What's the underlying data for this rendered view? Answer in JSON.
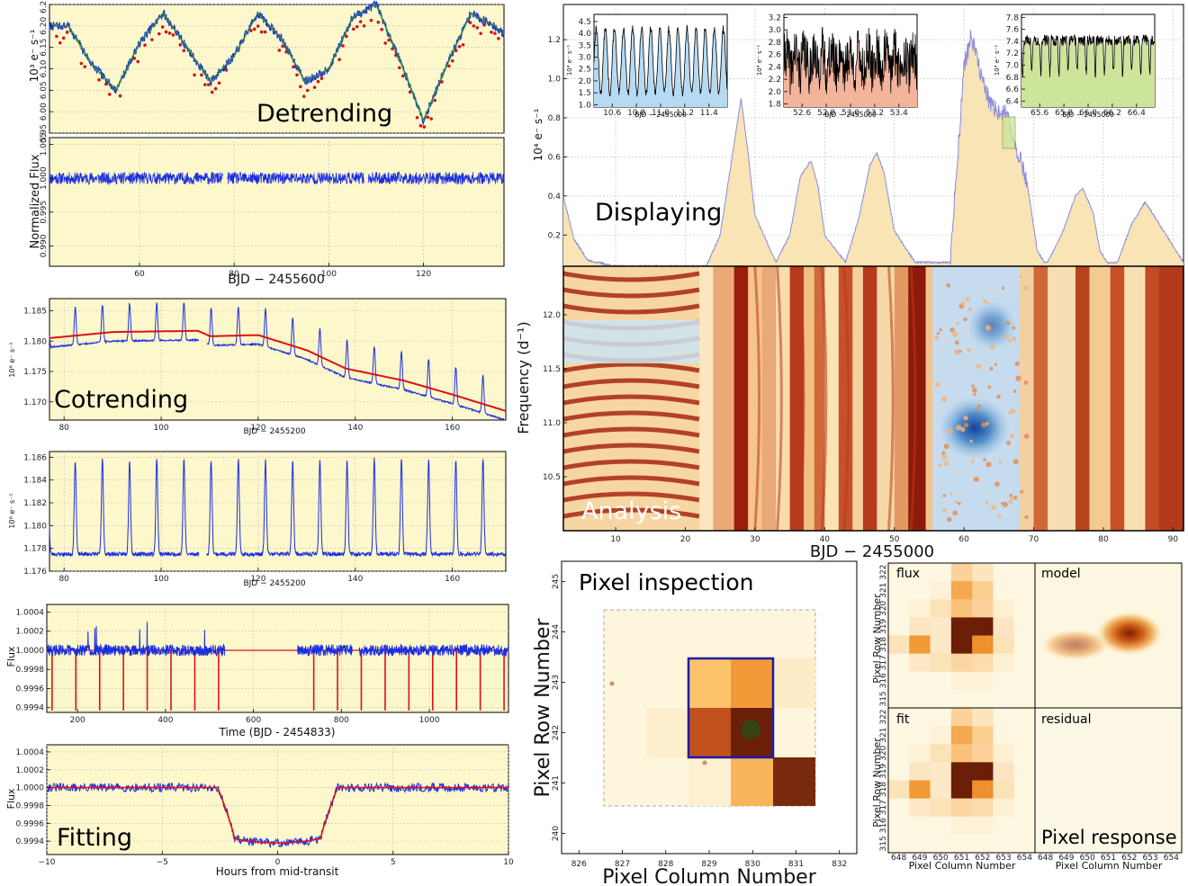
{
  "colors": {
    "fill": "#fdf7cc",
    "fill_pk": "#f8e4b4",
    "line": "#1a2ee0",
    "model": "#dd1111",
    "point": "#cc1818",
    "heat_hi": "#a32010",
    "heat_lo": "#1e4fa6"
  },
  "chart_data": [
    {
      "id": "detrending-raw",
      "type": "line",
      "ylabel": "10³ e⁻ s⁻¹",
      "yticks": [
        "5.95",
        "6.00",
        "6.05",
        "6.10",
        "6.15",
        "6.20",
        "6.25"
      ],
      "ylim": [
        5.95,
        6.25
      ],
      "xlim": [
        41,
        137
      ],
      "overlay": "Detrending",
      "series": [
        {
          "x": [
            41,
            45,
            50,
            55,
            60,
            65,
            70,
            75,
            80,
            85,
            90,
            95,
            100,
            105,
            110,
            115,
            120,
            125,
            130,
            135,
            137
          ],
          "values": [
            6.2,
            6.2,
            6.11,
            6.05,
            6.16,
            6.23,
            6.15,
            6.07,
            6.13,
            6.23,
            6.17,
            6.07,
            6.1,
            6.22,
            6.25,
            6.12,
            5.98,
            6.11,
            6.23,
            6.2,
            6.18
          ]
        }
      ]
    },
    {
      "id": "detrending-normalized",
      "type": "line",
      "ylabel": "Normalized Flux",
      "yticks": [
        "0.990",
        "0.995",
        "1.000",
        "1.005"
      ],
      "ylim": [
        0.987,
        1.006
      ],
      "xticks": [
        "60",
        "80",
        "100",
        "120"
      ],
      "xlabel": "BJD − 2455600",
      "xlim": [
        41,
        137
      ]
    },
    {
      "id": "cotrending-raw",
      "type": "line",
      "ylabel": "10⁶ e⁻ s⁻¹",
      "yticks": [
        "1.170",
        "1.175",
        "1.180",
        "1.185"
      ],
      "ylim": [
        1.167,
        1.187
      ],
      "xticks": [
        "80",
        "100",
        "120",
        "140",
        "160"
      ],
      "xlabel": "BJD − 2455200",
      "xlim": [
        77,
        171
      ],
      "overlay": "Cotrending",
      "series": [
        {
          "name": "trend",
          "x": [
            77,
            90,
            108,
            110,
            120,
            130,
            138,
            150,
            160,
            171
          ],
          "values": [
            1.1805,
            1.1815,
            1.1817,
            1.1808,
            1.181,
            1.1785,
            1.1755,
            1.1735,
            1.1712,
            1.1685
          ]
        }
      ]
    },
    {
      "id": "cotrending-corrected",
      "type": "line",
      "ylabel": "10⁶ e⁻ s⁻¹",
      "yticks": [
        "1.176",
        "1.178",
        "1.180",
        "1.182",
        "1.184",
        "1.186"
      ],
      "ylim": [
        1.176,
        1.1865
      ],
      "xticks": [
        "80",
        "100",
        "120",
        "140",
        "160"
      ],
      "xlabel": "BJD − 2455200",
      "xlim": [
        77,
        171
      ]
    },
    {
      "id": "fitting-long",
      "type": "line",
      "ylabel": "Flux",
      "yticks": [
        "0.9994",
        "0.9996",
        "0.9998",
        "1.0000",
        "1.0002",
        "1.0004"
      ],
      "ylim": [
        0.99935,
        1.00048
      ],
      "xticks": [
        "200",
        "400",
        "600",
        "800",
        "1000"
      ],
      "xlabel": "Time (BJD - 2454833)",
      "xlim": [
        130,
        1180
      ]
    },
    {
      "id": "fitting-folded",
      "type": "line",
      "ylabel": "Flux",
      "yticks": [
        "0.9994",
        "0.9996",
        "0.9998",
        "1.0000",
        "1.0002",
        "1.0004"
      ],
      "ylim": [
        0.99925,
        1.00048
      ],
      "xticks": [
        "−10",
        "−5",
        "0",
        "5",
        "10"
      ],
      "xlabel": "Hours from mid-transit",
      "xlim": [
        -10,
        10
      ],
      "overlay": "Fitting"
    },
    {
      "id": "displaying-lightcurve",
      "type": "area",
      "ylabel": "10⁴ e⁻ s⁻¹",
      "yticks": [
        "0.2",
        "0.4",
        "0.6",
        "0.8",
        "1.0",
        "1.2"
      ],
      "ylim": [
        0.04,
        1.38
      ],
      "xlim": [
        2.5,
        91.5
      ],
      "overlay": "Displaying",
      "series": [
        {
          "x": [
            2.5,
            4,
            6,
            10,
            20,
            23,
            25,
            26.5,
            28,
            29,
            30,
            33,
            35,
            36.5,
            38,
            39,
            40,
            43,
            45,
            46.5,
            47.5,
            48.5,
            50,
            53,
            58,
            60,
            61,
            62,
            63,
            64,
            66,
            69,
            70.5,
            71.5,
            72,
            74,
            76,
            77,
            78.5,
            79.5,
            80.5,
            82,
            84,
            86,
            91.5
          ],
          "values": [
            0.4,
            0.18,
            0.07,
            0.04,
            0.04,
            0.04,
            0.2,
            0.55,
            0.9,
            0.62,
            0.3,
            0.06,
            0.2,
            0.5,
            0.58,
            0.46,
            0.2,
            0.06,
            0.3,
            0.56,
            0.62,
            0.52,
            0.22,
            0.06,
            0.06,
            1.06,
            1.22,
            1.08,
            0.95,
            0.85,
            0.82,
            0.48,
            0.12,
            0.06,
            0.06,
            0.2,
            0.4,
            0.44,
            0.32,
            0.12,
            0.06,
            0.06,
            0.25,
            0.37,
            0.06
          ]
        }
      ]
    },
    {
      "id": "inset-1",
      "type": "line",
      "ylabel": "10⁴ e⁻ s⁻¹",
      "yticks": [
        "1.0",
        "1.5",
        "2.0",
        "2.5",
        "3.0",
        "3.5",
        "4.0",
        "4.5"
      ],
      "ylim": [
        0.9,
        4.8
      ],
      "xticks": [
        "10.6",
        "10.8",
        "11.0",
        "11.2",
        "11.4"
      ],
      "xlabel": "BJD − 2455000",
      "xlim": [
        10.45,
        11.55
      ],
      "color": "#b6daf2"
    },
    {
      "id": "inset-2",
      "type": "line",
      "ylabel": "10⁴ e⁻ s⁻¹",
      "yticks": [
        "1.8",
        "2.0",
        "2.2",
        "2.4",
        "2.6",
        "2.8",
        "3.0",
        "3.2"
      ],
      "ylim": [
        1.75,
        3.25
      ],
      "xticks": [
        "52.6",
        "52.8",
        "53.0",
        "53.2",
        "53.4"
      ],
      "xlabel": "BJD − 2455000",
      "xlim": [
        52.45,
        53.55
      ],
      "color": "#f4b49c"
    },
    {
      "id": "inset-3",
      "type": "line",
      "ylabel": "10⁴ e⁻ s⁻¹",
      "yticks": [
        "6.4",
        "6.6",
        "6.8",
        "7.0",
        "7.2",
        "7.4",
        "7.6",
        "7.8"
      ],
      "ylim": [
        6.3,
        7.85
      ],
      "xticks": [
        "65.6",
        "65.8",
        "66.0",
        "66.2",
        "66.4"
      ],
      "xlabel": "BJD − 2455000",
      "xlim": [
        65.45,
        66.55
      ],
      "color": "#cde49b"
    },
    {
      "id": "analysis-heatmap",
      "type": "heatmap",
      "ylabel": "Frequency (d⁻¹)",
      "yticks": [
        "10.5",
        "11.0",
        "11.5",
        "12.0"
      ],
      "ylim": [
        10.0,
        12.45
      ],
      "xticks": [
        "10",
        "20",
        "30",
        "40",
        "50",
        "60",
        "70",
        "80",
        "90"
      ],
      "xlabel": "BJD − 2455000",
      "xlim": [
        2.5,
        91.5
      ],
      "overlay": "Analysis"
    },
    {
      "id": "pixel-inspection",
      "type": "heatmap",
      "ylabel": "Pixel Row Number",
      "yticks": [
        "240",
        "241",
        "242",
        "243",
        "244",
        "245"
      ],
      "ylim": [
        239.6,
        245.4
      ],
      "xticks": [
        "826",
        "827",
        "828",
        "829",
        "830",
        "831",
        "832"
      ],
      "xlabel": "Pixel Column Number",
      "xlim": [
        825.6,
        832.4
      ],
      "overlay": "Pixel inspection"
    },
    {
      "id": "pixel-response",
      "type": "heatmap",
      "panels": [
        "flux",
        "model",
        "fit",
        "residual"
      ],
      "ylabel": "Pixel Row Number",
      "yticks": [
        "315",
        "316",
        "317",
        "318",
        "319",
        "320",
        "321",
        "322"
      ],
      "xticks": [
        "648",
        "649",
        "650",
        "651",
        "652",
        "653",
        "654"
      ],
      "xlabel": "Pixel Column Number",
      "overlay": "Pixel response"
    }
  ]
}
